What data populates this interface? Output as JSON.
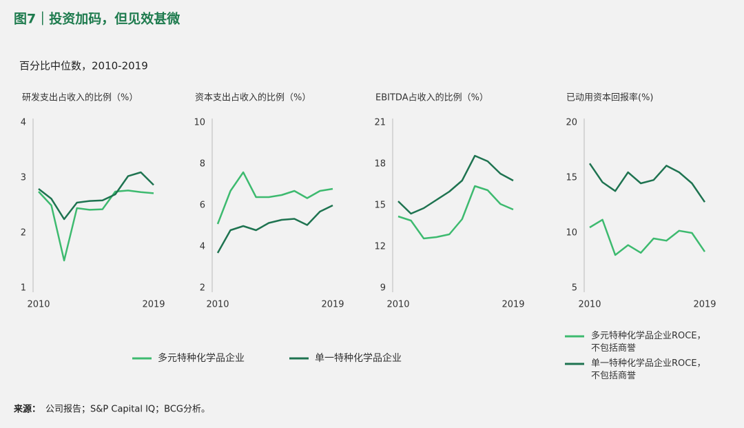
{
  "title": "图7｜投资加码，但见效甚微",
  "subtitle": "百分比中位数，2010-2019",
  "source_label": "来源：",
  "source": "公司报告；S&P Capital IQ；BCG分析。",
  "chart_data": [
    {
      "type": "line",
      "title": "研发支出占收入的比例（%）",
      "x": [
        2010,
        2011,
        2012,
        2013,
        2014,
        2015,
        2016,
        2017,
        2018,
        2019
      ],
      "xlim": [
        2010,
        2019
      ],
      "xticks": [
        2010,
        2019
      ],
      "ylim": [
        1,
        4
      ],
      "yticks": [
        1,
        2,
        3,
        4
      ],
      "series": [
        {
          "name": "多元特种化学品企业",
          "color": "#3dba6f",
          "values": [
            2.75,
            2.5,
            1.5,
            2.45,
            2.42,
            2.43,
            2.75,
            2.77,
            2.74,
            2.72
          ]
        },
        {
          "name": "单一特种化学品企业",
          "color": "#1e7350",
          "values": [
            2.8,
            2.62,
            2.25,
            2.55,
            2.58,
            2.59,
            2.7,
            3.03,
            3.1,
            2.87
          ]
        }
      ]
    },
    {
      "type": "line",
      "title": "资本支出占收入的比例（%）",
      "x": [
        2010,
        2011,
        2012,
        2013,
        2014,
        2015,
        2016,
        2017,
        2018,
        2019
      ],
      "xlim": [
        2010,
        2019
      ],
      "xticks": [
        2010,
        2019
      ],
      "ylim": [
        2,
        10
      ],
      "yticks": [
        2,
        4,
        6,
        8,
        10
      ],
      "series": [
        {
          "name": "多元特种化学品企业",
          "color": "#3dba6f",
          "values": [
            5.1,
            6.7,
            7.6,
            6.4,
            6.4,
            6.5,
            6.7,
            6.35,
            6.7,
            6.8
          ]
        },
        {
          "name": "单一特种化学品企业",
          "color": "#1e7350",
          "values": [
            3.7,
            4.8,
            5.0,
            4.8,
            5.15,
            5.3,
            5.35,
            5.05,
            5.7,
            6.0
          ]
        }
      ]
    },
    {
      "type": "line",
      "title": "EBITDA占收入的比例（%）",
      "x": [
        2010,
        2011,
        2012,
        2013,
        2014,
        2015,
        2016,
        2017,
        2018,
        2019
      ],
      "xlim": [
        2010,
        2019
      ],
      "xticks": [
        2010,
        2019
      ],
      "ylim": [
        9,
        21
      ],
      "yticks": [
        9,
        12,
        15,
        18,
        21
      ],
      "series": [
        {
          "name": "多元特种化学品企业",
          "color": "#3dba6f",
          "values": [
            14.2,
            13.9,
            12.6,
            12.7,
            12.9,
            14.0,
            16.4,
            16.1,
            15.1,
            14.7
          ]
        },
        {
          "name": "单一特种化学品企业",
          "color": "#1e7350",
          "values": [
            15.3,
            14.4,
            14.8,
            15.4,
            16.0,
            16.8,
            18.6,
            18.2,
            17.3,
            16.8
          ]
        }
      ]
    },
    {
      "type": "line",
      "title": "已动用资本回报率(%)",
      "x": [
        2010,
        2011,
        2012,
        2013,
        2014,
        2015,
        2016,
        2017,
        2018,
        2019
      ],
      "xlim": [
        2010,
        2019
      ],
      "xticks": [
        2010,
        2019
      ],
      "ylim": [
        5,
        20
      ],
      "yticks": [
        5,
        10,
        15,
        20
      ],
      "series": [
        {
          "name": "多元特种化学品企业ROCE，\n不包括商誉",
          "color": "#3dba6f",
          "values": [
            10.5,
            11.2,
            8.0,
            8.9,
            8.2,
            9.5,
            9.3,
            10.2,
            10.0,
            8.3
          ]
        },
        {
          "name": "单一特种化学品企业ROCE，\n不包括商誉",
          "color": "#1e7350",
          "values": [
            16.3,
            14.6,
            13.8,
            15.5,
            14.5,
            14.8,
            16.1,
            15.5,
            14.5,
            12.8
          ]
        }
      ]
    }
  ]
}
